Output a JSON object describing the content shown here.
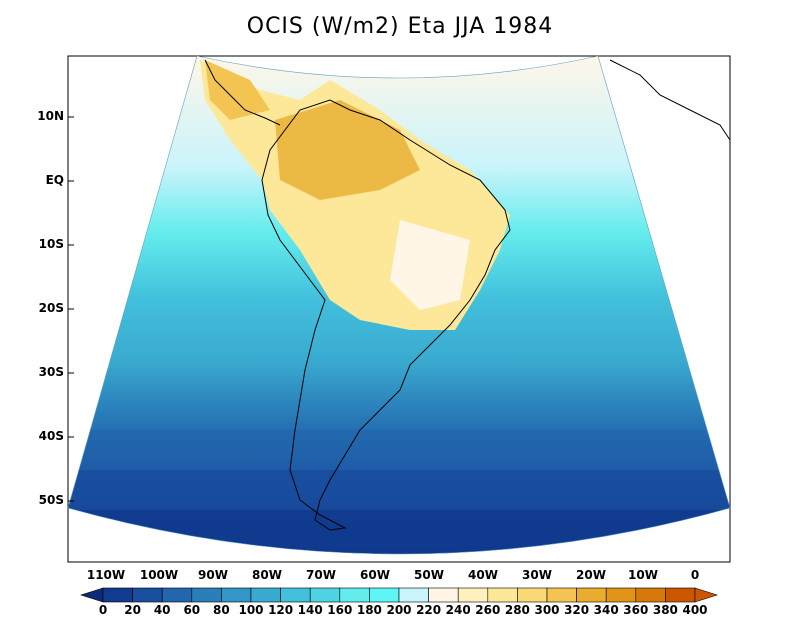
{
  "title": "OCIS (W/m2) Eta JJA 1984",
  "lat_labels": [
    "10N",
    "EQ",
    "10S",
    "20S",
    "30S",
    "40S",
    "50S"
  ],
  "lon_labels": [
    "110W",
    "100W",
    "90W",
    "80W",
    "70W",
    "60W",
    "50W",
    "40W",
    "30W",
    "20W",
    "10W",
    "0"
  ],
  "colorbar_labels": [
    "0",
    "20",
    "40",
    "60",
    "80",
    "100",
    "120",
    "140",
    "160",
    "180",
    "200",
    "220",
    "240",
    "260",
    "280",
    "300",
    "320",
    "340",
    "360",
    "380",
    "400"
  ],
  "colorbar_colors": [
    "#0b2a78",
    "#113b8e",
    "#1a4fa0",
    "#2266ad",
    "#2a7fba",
    "#3396c6",
    "#3aabd0",
    "#42c0dc",
    "#4fd4e4",
    "#63ecec",
    "#5ff5f5",
    "#c9f4fb",
    "#fff6e8",
    "#fff0bd",
    "#fde89a",
    "#f9d975",
    "#f3c452",
    "#e9ac2f",
    "#e0951a",
    "#d6780a",
    "#cc5500",
    "#cc5500"
  ],
  "colorbar_range": [
    0,
    400
  ]
}
